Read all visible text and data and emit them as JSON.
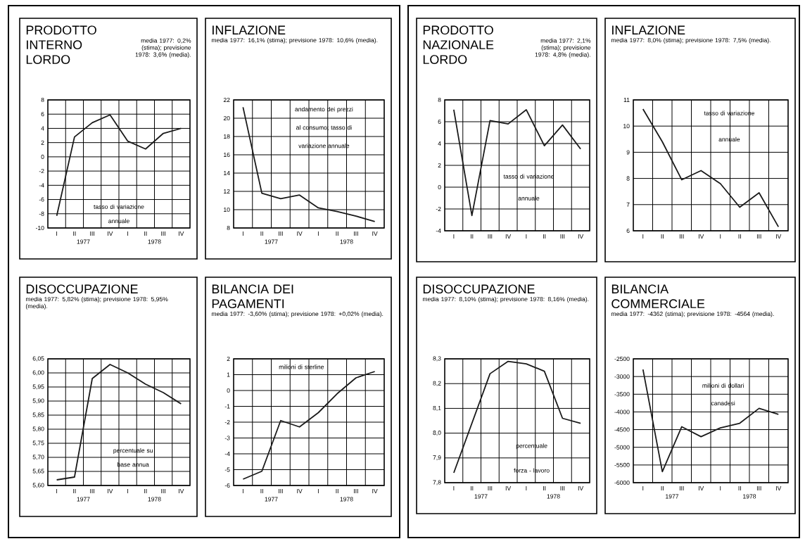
{
  "chart_data": [
    {
      "type": "line",
      "title": "PRODOTTO INTERNO LORDO",
      "subtitle": "media 1977: 0,2% (stima); previsione 1978: 3,6% (media).",
      "categories": [
        "I",
        "II",
        "III",
        "IV",
        "I",
        "II",
        "III",
        "IV"
      ],
      "values": [
        -8.3,
        2.8,
        4.8,
        5.9,
        2.2,
        1.1,
        3.3,
        4.0
      ],
      "color": "#1a1a1a",
      "ylim": [
        -10,
        8
      ],
      "yticks": [
        -10,
        -8,
        -6,
        -4,
        -2,
        0,
        2,
        4,
        6,
        8
      ],
      "grid": true,
      "annotations": [
        "tasso di variazione annuale",
        "1977",
        "1978"
      ]
    },
    {
      "type": "line",
      "title": "INFLAZIONE",
      "subtitle": "media 1977: 16,1% (stima); previsione 1978: 10,6% (media).",
      "categories": [
        "I",
        "II",
        "III",
        "IV",
        "I",
        "II",
        "III",
        "IV"
      ],
      "values": [
        21.2,
        11.8,
        11.2,
        11.6,
        10.2,
        9.8,
        9.3,
        8.7
      ],
      "color": "#1a1a1a",
      "ylim": [
        8,
        22
      ],
      "yticks": [
        8,
        10,
        12,
        14,
        16,
        18,
        20,
        22
      ],
      "grid": true,
      "annotations": [
        "andamento dei prezzi al consumo; tasso di variazione annuale",
        "1977",
        "1978"
      ]
    },
    {
      "type": "line",
      "title": "DISOCCUPAZIONE",
      "subtitle": "media 1977: 5,82% (stima); previsione 1978: 5,95% (media).",
      "categories": [
        "I",
        "II",
        "III",
        "IV",
        "I",
        "II",
        "III",
        "IV"
      ],
      "values": [
        5.62,
        5.63,
        5.98,
        6.03,
        6.0,
        5.96,
        5.93,
        5.89
      ],
      "color": "#1a1a1a",
      "ylim": [
        5.6,
        6.05
      ],
      "yticks": [
        {
          "value": 5.6,
          "label": "5,60"
        },
        {
          "value": 5.65,
          "label": "5,65"
        },
        {
          "value": 5.7,
          "label": "5,70"
        },
        {
          "value": 5.75,
          "label": "5,75"
        },
        {
          "value": 5.8,
          "label": "5,80"
        },
        {
          "value": 5.85,
          "label": "5,85"
        },
        {
          "value": 5.9,
          "label": "5,90"
        },
        {
          "value": 5.95,
          "label": "5,95"
        },
        {
          "value": 6.0,
          "label": "6,00"
        },
        {
          "value": 6.05,
          "label": "6,05"
        }
      ],
      "grid": true,
      "annotations": [
        "percentuale su base annua",
        "1977",
        "1978"
      ]
    },
    {
      "type": "line",
      "title": "BILANCIA DEI PAGAMENTI",
      "subtitle": "media 1977: -3,60% (stima); previsione 1978: +0,02% (media).",
      "categories": [
        "I",
        "II",
        "III",
        "IV",
        "I",
        "II",
        "III",
        "IV"
      ],
      "values": [
        -5.6,
        -5.1,
        -1.9,
        -2.3,
        -1.4,
        -0.2,
        0.8,
        1.2
      ],
      "color": "#1a1a1a",
      "ylim": [
        -6,
        2
      ],
      "yticks": [
        -6,
        -5,
        -4,
        -3,
        -2,
        -1,
        0,
        1,
        2
      ],
      "grid": true,
      "annotations": [
        "milioni di sterline",
        "1977",
        "1978"
      ]
    },
    {
      "type": "line",
      "title": "PRODOTTO NAZIONALE LORDO",
      "subtitle": "media 1977: 2,1% (stima); previsione 1978: 4,8% (media).",
      "categories": [
        "I",
        "II",
        "III",
        "IV",
        "I",
        "II",
        "III",
        "IV"
      ],
      "values": [
        7.1,
        -2.6,
        6.1,
        5.8,
        7.1,
        3.8,
        5.7,
        3.5
      ],
      "color": "#1a1a1a",
      "ylim": [
        -4,
        8
      ],
      "yticks": [
        -4,
        -2,
        0,
        2,
        4,
        6,
        8
      ],
      "grid": true,
      "annotations": [
        "tasso di variazione annuale"
      ]
    },
    {
      "type": "line",
      "title": "INFLAZIONE",
      "subtitle": "media 1977: 8,0% (stima); previsione 1978: 7,5% (media).",
      "categories": [
        "I",
        "II",
        "III",
        "IV",
        "I",
        "II",
        "III",
        "IV"
      ],
      "values": [
        10.65,
        9.4,
        7.95,
        8.3,
        7.8,
        6.9,
        7.45,
        6.15
      ],
      "color": "#1a1a1a",
      "ylim": [
        6,
        11
      ],
      "yticks": [
        6,
        7,
        8,
        9,
        10,
        11
      ],
      "grid": true,
      "annotations": [
        "tasso di variazione annuale"
      ]
    },
    {
      "type": "line",
      "title": "DISOCCUPAZIONE",
      "subtitle": "media 1977: 8,10% (stima); previsione 1978: 8,16% (media).",
      "categories": [
        "I",
        "II",
        "III",
        "IV",
        "I",
        "II",
        "III",
        "IV"
      ],
      "values": [
        7.84,
        8.04,
        8.24,
        8.29,
        8.28,
        8.25,
        8.06,
        8.04
      ],
      "color": "#1a1a1a",
      "ylim": [
        7.8,
        8.3
      ],
      "yticks": [
        {
          "value": 7.8,
          "label": "7,8"
        },
        {
          "value": 7.9,
          "label": "7,9"
        },
        {
          "value": 8.0,
          "label": "8,0"
        },
        {
          "value": 8.1,
          "label": "8,1"
        },
        {
          "value": 8.2,
          "label": "8,2"
        },
        {
          "value": 8.3,
          "label": "8,3"
        }
      ],
      "grid": true,
      "annotations": [
        "percentuale forza - lavoro",
        "1977",
        "1978"
      ]
    },
    {
      "type": "line",
      "title": "BILANCIA COMMERCIALE",
      "subtitle": "media 1977: -4362 (stima); previsione 1978: -4564 (media).",
      "categories": [
        "I",
        "II",
        "III",
        "IV",
        "I",
        "II",
        "III",
        "IV"
      ],
      "values": [
        -2800,
        -5690,
        -4420,
        -4700,
        -4450,
        -4320,
        -3900,
        -4070
      ],
      "color": "#1a1a1a",
      "ylim": [
        -6000,
        -2500
      ],
      "yticks": [
        -6000,
        -5500,
        -5000,
        -4500,
        -4000,
        -3500,
        -3000,
        -2500
      ],
      "grid": true,
      "annotations": [
        "milioni di dollari canadesi",
        "1977",
        "1978"
      ]
    }
  ]
}
